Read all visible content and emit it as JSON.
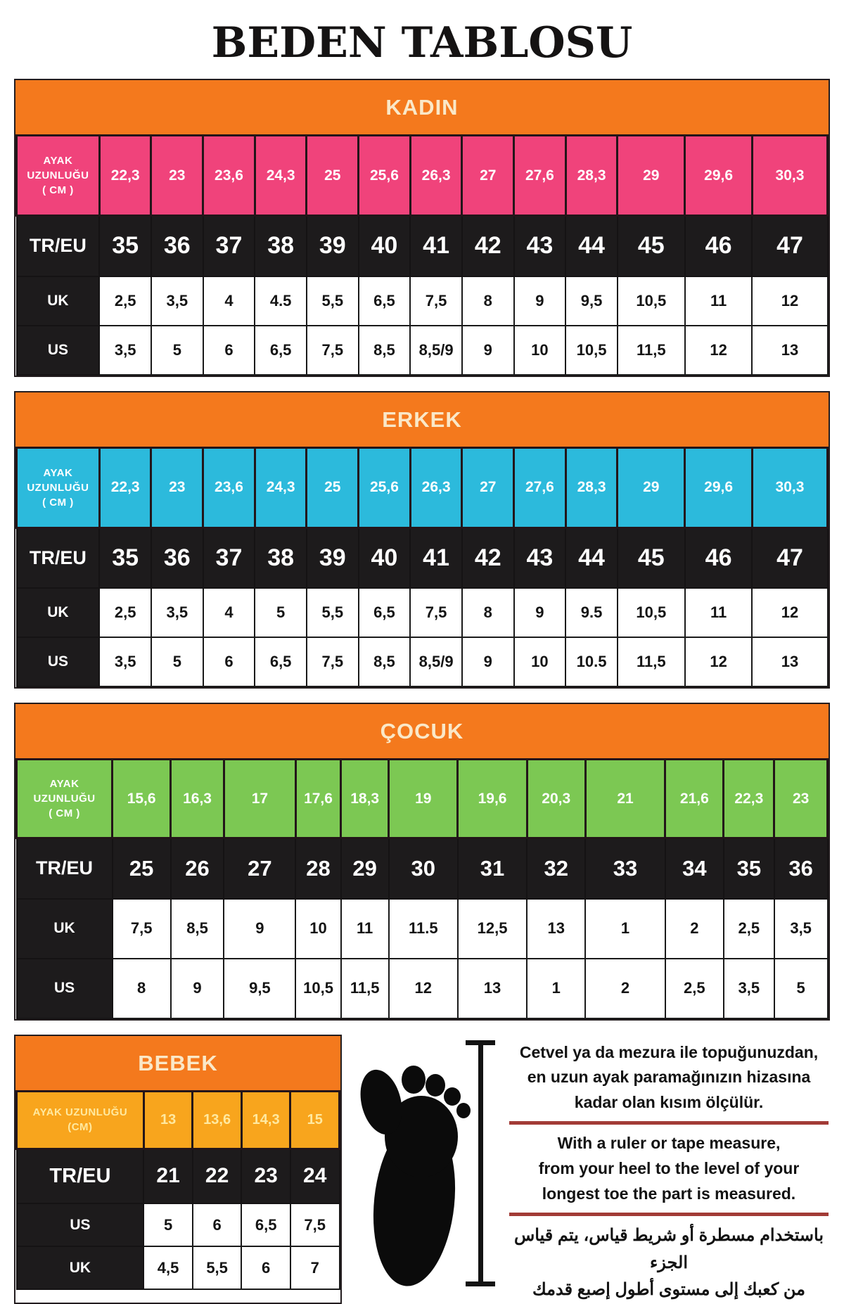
{
  "page": {
    "title": "BEDEN TABLOSU"
  },
  "colors": {
    "header_bg": "#F4791D",
    "header_text": "#FAE8C8",
    "dark_row_bg": "#1D1B1C",
    "kadin_accent": "#F0437B",
    "erkek_accent": "#2CBADC",
    "cocuk_accent": "#7CC853",
    "bebek_accent": "#F8A51D",
    "bebek_accent_text": "#FFE9A0",
    "divider_red": "#A23B36"
  },
  "tables": {
    "kadin": {
      "title": "KADIN",
      "accent": "#F0437B",
      "accent_text": "#FFFFFF",
      "cm_label_lines": [
        "AYAK",
        "UZUNLUĞU",
        "( CM )"
      ],
      "cm_values": [
        "22,3",
        "23",
        "23,6",
        "24,3",
        "25",
        "25,6",
        "26,3",
        "27",
        "27,6",
        "28,3",
        "29",
        "29,6",
        "30,3"
      ],
      "size_rows": [
        {
          "label": "TR/EU",
          "variant": "dark",
          "values": [
            "35",
            "36",
            "37",
            "38",
            "39",
            "40",
            "41",
            "42",
            "43",
            "44",
            "45",
            "46",
            "47"
          ]
        },
        {
          "label": "UK",
          "variant": "light",
          "values": [
            "2,5",
            "3,5",
            "4",
            "4.5",
            "5,5",
            "6,5",
            "7,5",
            "8",
            "9",
            "9,5",
            "10,5",
            "11",
            "12"
          ]
        },
        {
          "label": "US",
          "variant": "light",
          "values": [
            "3,5",
            "5",
            "6",
            "6,5",
            "7,5",
            "8,5",
            "8,5/9",
            "9",
            "10",
            "10,5",
            "11,5",
            "12",
            "13"
          ]
        }
      ]
    },
    "erkek": {
      "title": "ERKEK",
      "accent": "#2CBADC",
      "accent_text": "#FFFFFF",
      "cm_label_lines": [
        "AYAK",
        "UZUNLUĞU",
        "( CM )"
      ],
      "cm_values": [
        "22,3",
        "23",
        "23,6",
        "24,3",
        "25",
        "25,6",
        "26,3",
        "27",
        "27,6",
        "28,3",
        "29",
        "29,6",
        "30,3"
      ],
      "size_rows": [
        {
          "label": "TR/EU",
          "variant": "dark",
          "values": [
            "35",
            "36",
            "37",
            "38",
            "39",
            "40",
            "41",
            "42",
            "43",
            "44",
            "45",
            "46",
            "47"
          ]
        },
        {
          "label": "UK",
          "variant": "light",
          "values": [
            "2,5",
            "3,5",
            "4",
            "5",
            "5,5",
            "6,5",
            "7,5",
            "8",
            "9",
            "9.5",
            "10,5",
            "11",
            "12"
          ]
        },
        {
          "label": "US",
          "variant": "light",
          "values": [
            "3,5",
            "5",
            "6",
            "6,5",
            "7,5",
            "8,5",
            "8,5/9",
            "9",
            "10",
            "10.5",
            "11,5",
            "12",
            "13"
          ]
        }
      ]
    },
    "cocuk": {
      "title": "ÇOCUK",
      "accent": "#7CC853",
      "accent_text": "#FFFFFF",
      "cm_label_lines": [
        "AYAK",
        "UZUNLUĞU",
        "( CM )"
      ],
      "cm_values": [
        "15,6",
        "16,3",
        "17",
        "17,6",
        "18,3",
        "19",
        "19,6",
        "20,3",
        "21",
        "21,6",
        "22,3",
        "23"
      ],
      "size_rows": [
        {
          "label": "TR/EU",
          "variant": "dark",
          "values": [
            "25",
            "26",
            "27",
            "28",
            "29",
            "30",
            "31",
            "32",
            "33",
            "34",
            "35",
            "36"
          ]
        },
        {
          "label": "UK",
          "variant": "light",
          "values": [
            "7,5",
            "8,5",
            "9",
            "10",
            "11",
            "11.5",
            "12,5",
            "13",
            "1",
            "2",
            "2,5",
            "3,5"
          ]
        },
        {
          "label": "US",
          "variant": "light",
          "values": [
            "8",
            "9",
            "9,5",
            "10,5",
            "11,5",
            "12",
            "13",
            "1",
            "2",
            "2,5",
            "3,5",
            "5"
          ]
        }
      ]
    },
    "bebek": {
      "title": "BEBEK",
      "accent": "#F8A51D",
      "accent_text": "#FFE9A0",
      "cm_label_lines": [
        "AYAK UZUNLUĞU",
        "(CM)"
      ],
      "cm_values": [
        "13",
        "13,6",
        "14,3",
        "15"
      ],
      "size_rows": [
        {
          "label": "TR/EU",
          "variant": "dark",
          "values": [
            "21",
            "22",
            "23",
            "24"
          ]
        },
        {
          "label": "US",
          "variant": "light",
          "values": [
            "5",
            "6",
            "6,5",
            "7,5"
          ]
        },
        {
          "label": "UK",
          "variant": "light",
          "values": [
            "4,5",
            "5,5",
            "6",
            "7"
          ]
        }
      ]
    }
  },
  "measure_note": {
    "tr_lines": [
      "Cetvel ya da mezura ile topuğunuzdan,",
      "en uzun ayak paramağınızın hizasına",
      "kadar olan kısım ölçülür."
    ],
    "en_lines": [
      "With a ruler or tape measure,",
      "from your heel to the level of your",
      "longest toe the part is measured."
    ],
    "ar_lines": [
      "باستخدام مسطرة أو شريط قياس، يتم قياس الجزء",
      "من كعبك إلى مستوى أطول إصبع قدمك"
    ]
  }
}
